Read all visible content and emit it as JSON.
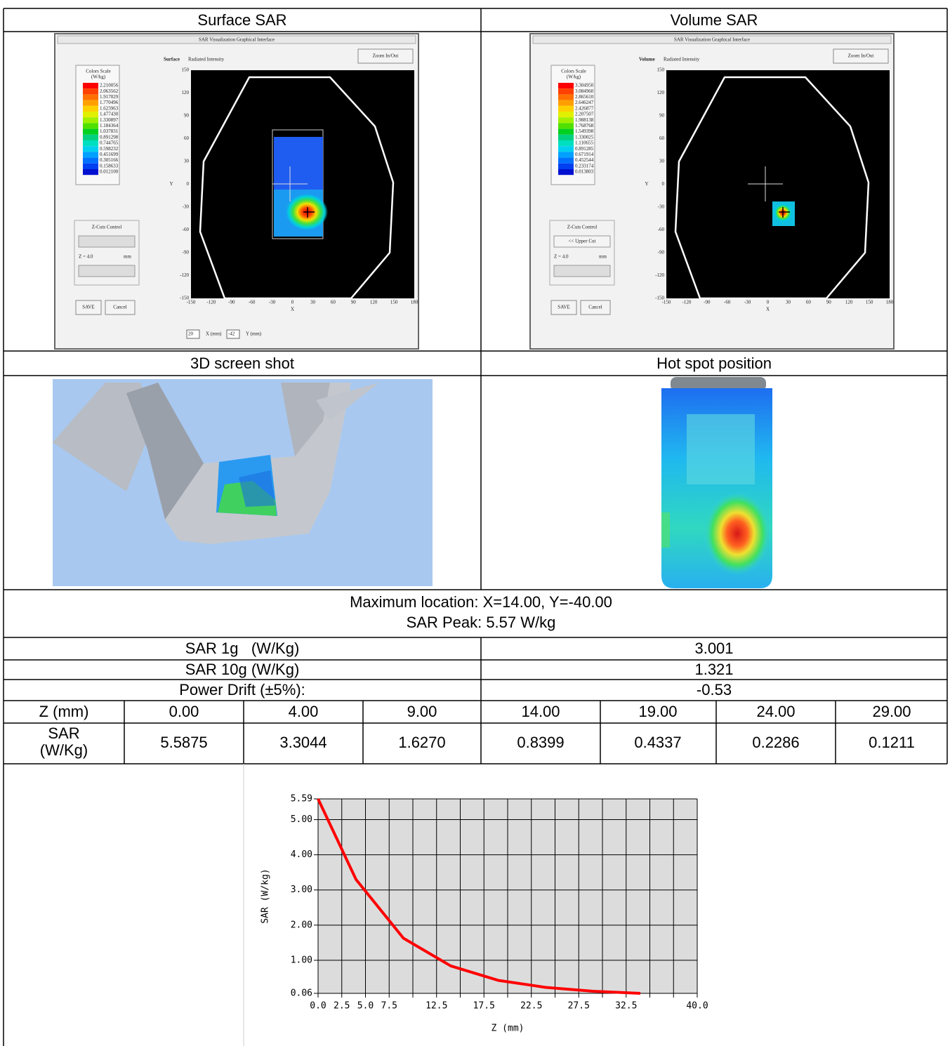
{
  "table": {
    "headers": [
      "Surface SAR",
      "Volume SAR"
    ],
    "image_headers": [
      "3D screen shot",
      "Hot spot position"
    ],
    "max_location": "Maximum location: X=14.00, Y=-40.00",
    "sar_peak": "SAR Peak: 5.57 W/kg",
    "summary": [
      [
        "SAR 1g   (W/Kg)",
        "3.001"
      ],
      [
        "SAR 10g (W/Kg)",
        "1.321"
      ],
      [
        "Power Drift (±5%):",
        "-0.53"
      ]
    ],
    "z_row": [
      "Z (mm)",
      "0.00",
      "4.00",
      "9.00",
      "14.00",
      "19.00",
      "24.00",
      "29.00"
    ],
    "sar_row": [
      "SAR (W/Kg)",
      "5.5875",
      "3.3044",
      "1.6270",
      "0.8399",
      "0.4337",
      "0.2286",
      "0.1211"
    ]
  },
  "gui_panels": [
    {
      "window_title": "SAR Visualization Graphical Interface",
      "mode": "Surface",
      "plot_title": "Radiated Intensity",
      "zoom_button": "Zoom In/Out",
      "scale_title": "Colors Scale",
      "scale_unit": "(W/kg)",
      "scale_values": [
        "2.210056",
        "2.063562",
        "1.917029",
        "1.770496",
        "1.623963",
        "1.477430",
        "1.330897",
        "1.184364",
        "1.037831",
        "0.891298",
        "0.744765",
        "0.598232",
        "0.451699",
        "0.305166",
        "0.158633",
        "0.012100"
      ],
      "zcut_title": "Z-Cuts Control",
      "z_label": "Z = 4.0",
      "z_unit": "mm",
      "save": "SAVE",
      "cancel": "Cancel",
      "yticks": [
        "150",
        "120",
        "90",
        "60",
        "30",
        "0",
        "-30",
        "-60",
        "-90",
        "-120",
        "-150"
      ],
      "xticks": [
        "-150",
        "-120",
        "-90",
        "-60",
        "-30",
        "0",
        "30",
        "60",
        "90",
        "120",
        "150",
        "180"
      ],
      "xlabel": "X",
      "ylabel": "Y",
      "x_input": "20",
      "x_input_label": "X (mm)",
      "y_input": "-42",
      "y_input_label": "Y (mm)"
    },
    {
      "window_title": "SAR Visualization Graphical Interface",
      "mode": "Volume",
      "plot_title": "Radiated Intensity",
      "zoom_button": "Zoom In/Out",
      "scale_title": "Colors Scale",
      "scale_unit": "(W/kg)",
      "scale_values": [
        "3.304950",
        "3.084960",
        "2.865610",
        "2.646247",
        "2.426877",
        "2.207507",
        "1.988138",
        "1.768768",
        "1.549398",
        "1.330025",
        "1.110655",
        "0.891285",
        "0.671914",
        "0.452544",
        "0.233174",
        "0.013803"
      ],
      "zcut_title": "Z-Cuts Control",
      "upper_button": "<< Upper Cut",
      "z_label": "Z = 4.0",
      "z_unit": "mm",
      "save": "SAVE",
      "cancel": "Cancel",
      "yticks": [
        "150",
        "120",
        "90",
        "60",
        "30",
        "0",
        "-30",
        "-60",
        "-90",
        "-120",
        "-150"
      ],
      "xticks": [
        "-150",
        "-120",
        "-90",
        "-60",
        "-30",
        "0",
        "30",
        "60",
        "90",
        "120",
        "150",
        "180"
      ],
      "xlabel": "X",
      "ylabel": "Y"
    }
  ],
  "chart_data": {
    "type": "line",
    "xlabel": "Z (mm)",
    "ylabel": "SAR (W/kg)",
    "x": [
      0,
      4,
      9,
      14,
      19,
      24,
      29,
      34
    ],
    "values": [
      5.59,
      3.3,
      1.63,
      0.84,
      0.43,
      0.23,
      0.12,
      0.06
    ],
    "color": "#ff0000",
    "background": "#dcdcdc",
    "grid": true,
    "xlim": [
      0,
      40
    ],
    "ylim": [
      0.06,
      5.59
    ],
    "xticks": [
      {
        "value": 0,
        "label": "0.0"
      },
      2.5,
      {
        "value": 5,
        "label": "5.0"
      },
      7.5,
      {
        "value": 10,
        "label": null
      },
      12.5,
      {
        "value": 15,
        "label": null
      },
      17.5,
      {
        "value": 20,
        "label": null
      },
      22.5,
      {
        "value": 25,
        "label": null
      },
      27.5,
      {
        "value": 30,
        "label": null
      },
      32.5,
      {
        "value": 35,
        "label": null
      },
      {
        "value": 37.5,
        "label": null
      },
      {
        "value": 40,
        "label": "40.0"
      }
    ],
    "yticks": [
      0.06,
      {
        "value": 1,
        "label": "1.00"
      },
      {
        "value": 2,
        "label": "2.00"
      },
      {
        "value": 3,
        "label": "3.00"
      },
      {
        "value": 4,
        "label": "4.00"
      },
      {
        "value": 5,
        "label": "5.00"
      },
      5.59
    ]
  }
}
